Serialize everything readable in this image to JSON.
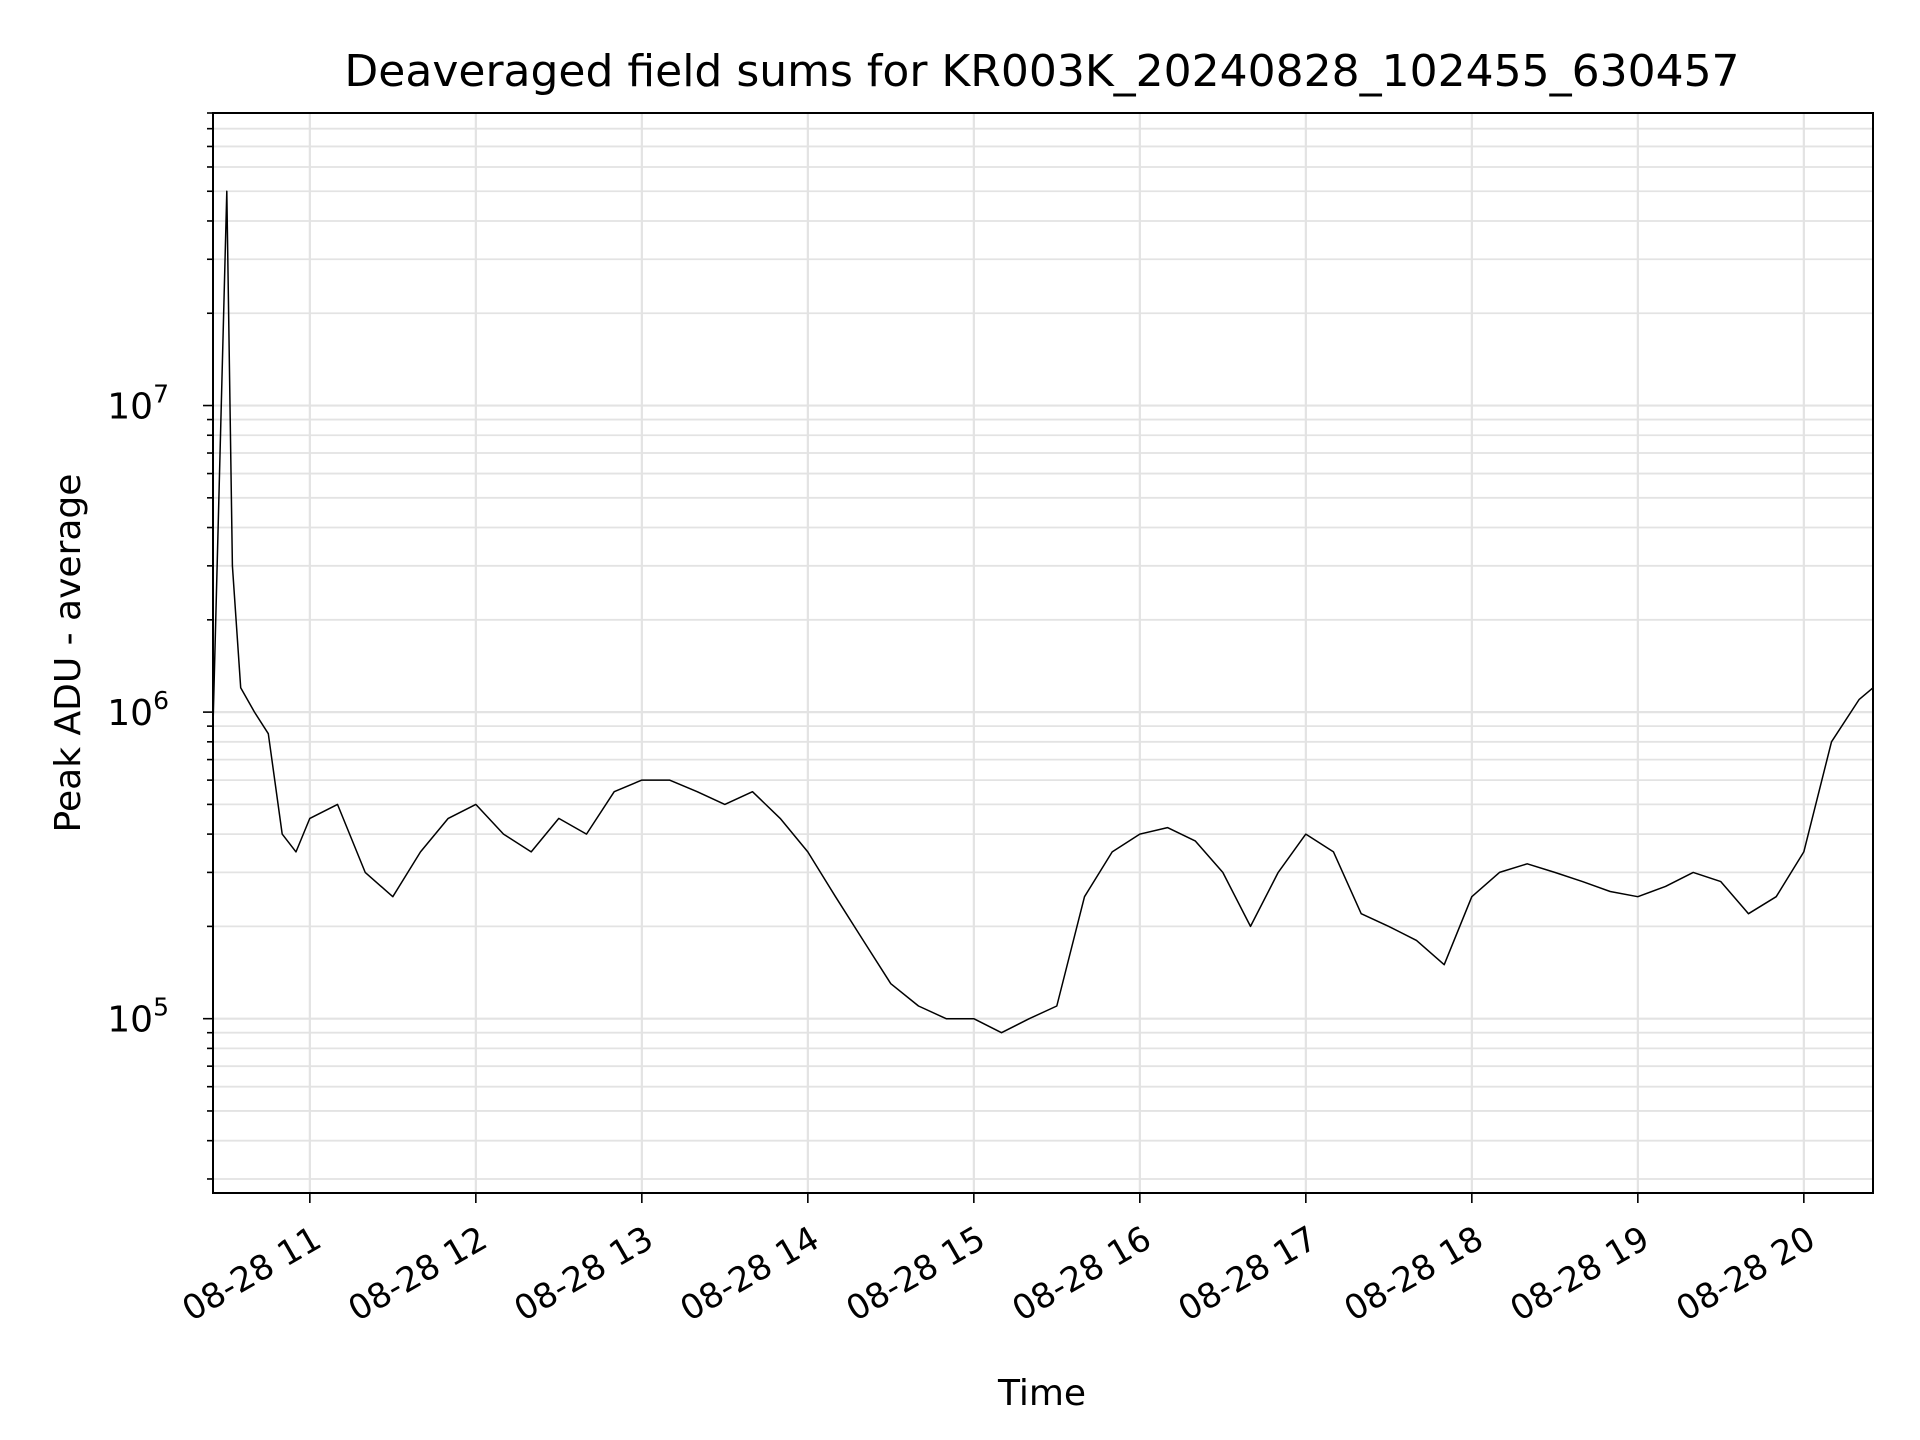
{
  "chart_data": {
    "type": "line",
    "title": "Deaveraged field sums for KR003K_20240828_102455_630457",
    "xlabel": "Time",
    "ylabel": "Peak ADU - average",
    "yscale": "log",
    "xlim": [
      "2024-08-28T10:25",
      "2024-08-28T20:25"
    ],
    "ylim": [
      27000,
      90000000
    ],
    "grid": true,
    "x_tick_labels": [
      "08-28 11",
      "08-28 12",
      "08-28 13",
      "08-28 14",
      "08-28 15",
      "08-28 16",
      "08-28 17",
      "08-28 18",
      "08-28 19",
      "08-28 20"
    ],
    "y_tick_labels": [
      {
        "base": "10",
        "exp": "5",
        "value": 100000
      },
      {
        "base": "10",
        "exp": "6",
        "value": 1000000
      },
      {
        "base": "10",
        "exp": "7",
        "value": 10000000
      }
    ],
    "line_color": "#000000",
    "series": [
      {
        "x": [
          "10:25",
          "10:30",
          "10:32",
          "10:35",
          "10:40",
          "10:45",
          "10:50",
          "10:55",
          "11:00",
          "11:10",
          "11:20",
          "11:30",
          "11:40",
          "11:50",
          "12:00",
          "12:10",
          "12:20",
          "12:30",
          "12:40",
          "12:50",
          "13:00",
          "13:10",
          "13:20",
          "13:30",
          "13:40",
          "13:50",
          "14:00",
          "14:10",
          "14:20",
          "14:30",
          "14:40",
          "14:50",
          "15:00",
          "15:10",
          "15:20",
          "15:30",
          "15:40",
          "15:50",
          "16:00",
          "16:10",
          "16:20",
          "16:30",
          "16:40",
          "16:50",
          "17:00",
          "17:10",
          "17:20",
          "17:30",
          "17:40",
          "17:50",
          "18:00",
          "18:10",
          "18:20",
          "18:30",
          "18:40",
          "18:50",
          "19:00",
          "19:10",
          "19:20",
          "19:30",
          "19:40",
          "19:50",
          "20:00",
          "20:10",
          "20:20",
          "20:25"
        ],
        "y": [
          900000,
          50000000,
          3000000,
          1200000,
          1000000,
          850000,
          400000,
          350000,
          450000,
          500000,
          300000,
          250000,
          350000,
          450000,
          500000,
          400000,
          350000,
          450000,
          400000,
          550000,
          600000,
          600000,
          550000,
          500000,
          550000,
          450000,
          350000,
          250000,
          180000,
          130000,
          110000,
          100000,
          100000,
          90000,
          100000,
          110000,
          250000,
          350000,
          400000,
          420000,
          380000,
          300000,
          200000,
          300000,
          400000,
          350000,
          220000,
          200000,
          180000,
          150000,
          250000,
          300000,
          320000,
          300000,
          280000,
          260000,
          250000,
          270000,
          300000,
          280000,
          220000,
          250000,
          350000,
          800000,
          1100000,
          1200000
        ]
      }
    ]
  }
}
